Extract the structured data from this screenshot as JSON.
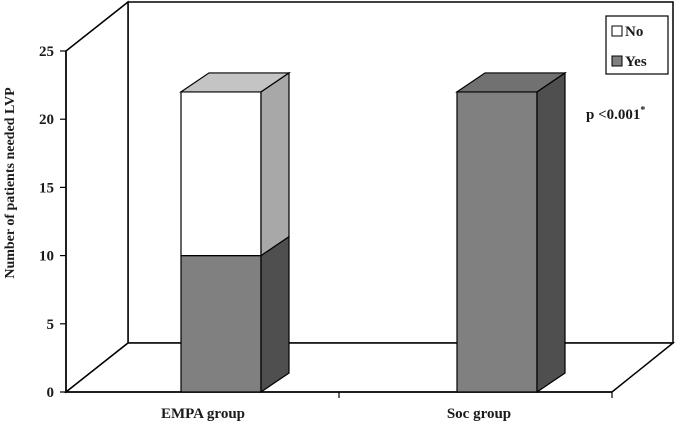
{
  "chart_data": {
    "type": "bar",
    "stacked": true,
    "categories": [
      "EMPA group",
      "Soc group"
    ],
    "series": [
      {
        "name": "Yes",
        "values": [
          10,
          22
        ],
        "color": "#808080"
      },
      {
        "name": "No",
        "values": [
          12,
          0
        ],
        "color": "#ffffff"
      }
    ],
    "ylabel": "Number of patients needed LVP",
    "xlabel": "",
    "title": "",
    "ylim": [
      0,
      25
    ],
    "yticks": [
      0,
      5,
      10,
      15,
      20,
      25
    ],
    "grid": false,
    "legend_position": "top-right",
    "legend_entries": [
      "No",
      "Yes"
    ],
    "annotation": {
      "text": "p <0.001",
      "superscript": "*"
    }
  }
}
